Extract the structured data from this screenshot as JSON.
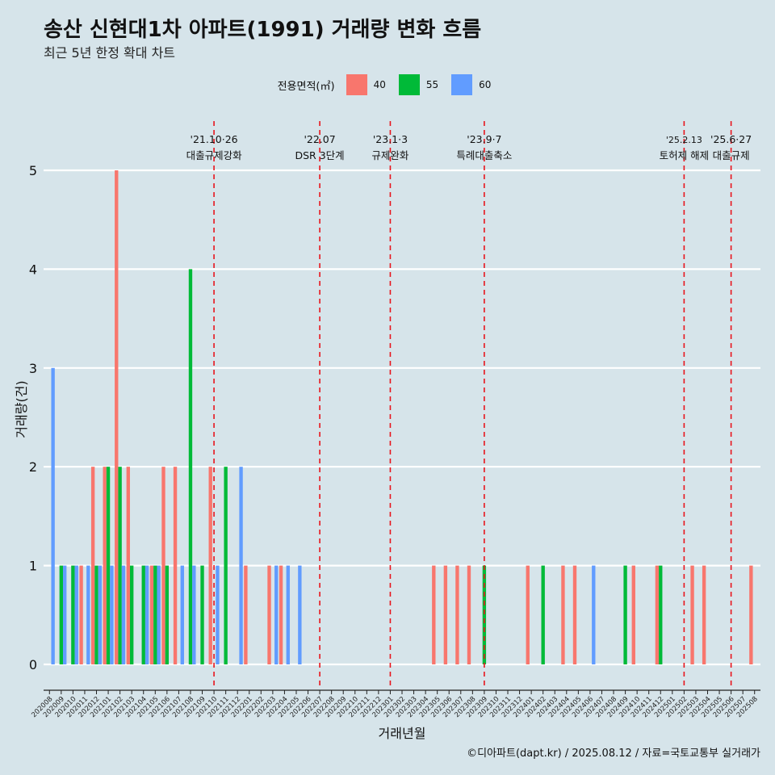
{
  "title": "송산 신현대1차 아파트(1991) 거래량 변화 흐름",
  "subtitle": "최근 5년 한정 확대 차트",
  "caption": "©디아파트(dapt.kr) / 2025.08.12 / 자료=국토교통부 실거래가",
  "legend": {
    "title": "전용면적(㎡)",
    "items": [
      {
        "label": "40",
        "color": "#F8766D"
      },
      {
        "label": "55",
        "color": "#00BA38"
      },
      {
        "label": "60",
        "color": "#619CFF"
      }
    ]
  },
  "chart_data": {
    "type": "bar",
    "xlabel": "거래년월",
    "ylabel": "거래량(건)",
    "ylim": [
      0,
      5
    ],
    "yticks": [
      0,
      1,
      2,
      3,
      4,
      5
    ],
    "categories": [
      "202008",
      "202009",
      "202010",
      "202011",
      "202012",
      "202101",
      "202102",
      "202103",
      "202104",
      "202105",
      "202106",
      "202107",
      "202108",
      "202109",
      "202110",
      "202111",
      "202112",
      "202201",
      "202202",
      "202203",
      "202204",
      "202205",
      "202206",
      "202207",
      "202208",
      "202209",
      "202210",
      "202211",
      "202212",
      "202301",
      "202302",
      "202303",
      "202304",
      "202305",
      "202306",
      "202307",
      "202308",
      "202309",
      "202310",
      "202311",
      "202312",
      "202401",
      "202402",
      "202403",
      "202404",
      "202405",
      "202406",
      "202407",
      "202408",
      "202409",
      "202410",
      "202411",
      "202412",
      "202501",
      "202502",
      "202503",
      "202504",
      "202505",
      "202506",
      "202507",
      "202508"
    ],
    "series": [
      {
        "name": "40",
        "color": "#F8766D",
        "values": [
          0,
          0,
          0,
          1,
          2,
          2,
          5,
          2,
          0,
          1,
          2,
          2,
          0,
          0,
          2,
          0,
          0,
          1,
          0,
          1,
          1,
          0,
          0,
          0,
          0,
          0,
          0,
          0,
          0,
          0,
          0,
          0,
          0,
          1,
          1,
          1,
          1,
          0,
          0,
          0,
          0,
          1,
          0,
          0,
          1,
          1,
          0,
          0,
          0,
          0,
          1,
          0,
          1,
          0,
          0,
          1,
          1,
          0,
          0,
          0,
          1
        ]
      },
      {
        "name": "55",
        "color": "#00BA38",
        "values": [
          0,
          1,
          1,
          0,
          1,
          2,
          2,
          1,
          1,
          1,
          1,
          0,
          4,
          1,
          0,
          2,
          0,
          0,
          0,
          0,
          0,
          0,
          0,
          0,
          0,
          0,
          0,
          0,
          0,
          0,
          0,
          0,
          0,
          0,
          0,
          0,
          0,
          1,
          0,
          0,
          0,
          0,
          1,
          0,
          0,
          0,
          0,
          0,
          0,
          1,
          0,
          0,
          1,
          0,
          0,
          0,
          0,
          0,
          0,
          0,
          0
        ]
      },
      {
        "name": "60",
        "color": "#619CFF",
        "values": [
          3,
          1,
          1,
          1,
          1,
          1,
          1,
          0,
          1,
          1,
          0,
          1,
          1,
          0,
          1,
          0,
          2,
          0,
          0,
          1,
          1,
          1,
          0,
          0,
          0,
          0,
          0,
          0,
          0,
          0,
          0,
          0,
          0,
          0,
          0,
          0,
          0,
          0,
          0,
          0,
          0,
          0,
          0,
          0,
          0,
          0,
          1,
          0,
          0,
          0,
          0,
          0,
          0,
          0,
          0,
          0,
          0,
          0,
          0,
          0,
          0
        ]
      }
    ],
    "annotations": [
      {
        "x_pos": 14.5,
        "date": "'21.10·26",
        "text": "대출규제강화"
      },
      {
        "x_pos": 23.5,
        "date": "'22.07",
        "text": "DSR 3단계"
      },
      {
        "x_pos": 29.5,
        "date": "'23.1·3",
        "text": "규제완화"
      },
      {
        "x_pos": 37.5,
        "date": "'23.9·7",
        "text": "특례대출축소"
      },
      {
        "x_pos": 54.5,
        "date": "'25.2.13",
        "text": "토허제 해제"
      },
      {
        "x_pos": 58.5,
        "date": "'25.6·27",
        "text": "대출규제"
      }
    ],
    "grid": true,
    "legend_position": "top"
  }
}
